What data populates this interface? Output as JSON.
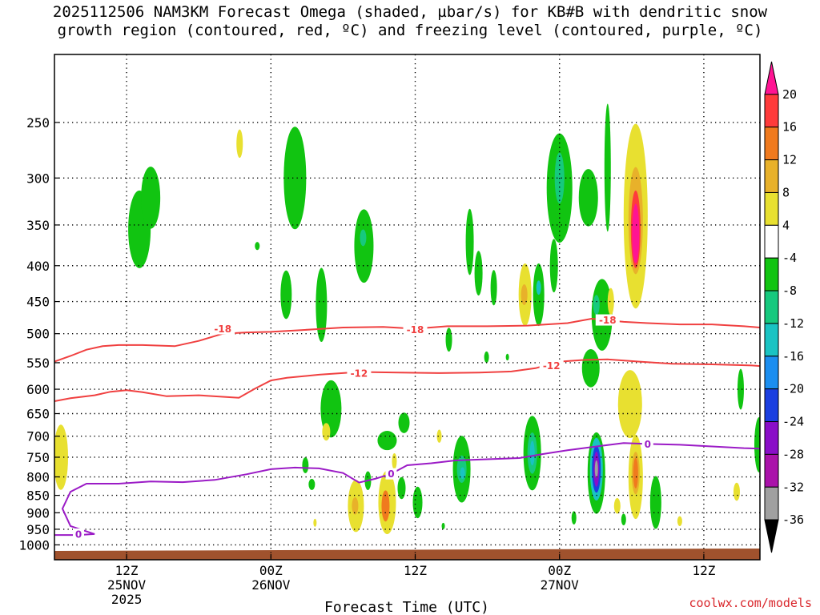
{
  "title": {
    "line1": "2025112506 NAM3KM Forecast Omega (shaded, µbar/s) for KB#B with dendritic snow",
    "line2": "growth region (contoured, red, ºC) and freezing level (contoured, purple, ºC)"
  },
  "credit": "coolwx.com/models",
  "chart_data": {
    "type": "heatmap",
    "xlabel": "Forecast Time (UTC)",
    "ylabel": "",
    "y_scale": "log-pressure (inverted)",
    "ylim": [
      200,
      1050
    ],
    "xlim": [
      6,
      94
    ],
    "x_ticks": [
      {
        "x": 15,
        "labels": [
          "12Z",
          "25NOV",
          "2025"
        ]
      },
      {
        "x": 33,
        "labels": [
          "00Z",
          "26NOV"
        ]
      },
      {
        "x": 51,
        "labels": [
          "12Z"
        ]
      },
      {
        "x": 69,
        "labels": [
          "00Z",
          "27NOV"
        ]
      },
      {
        "x": 87,
        "labels": [
          "12Z"
        ]
      }
    ],
    "y_ticks": [
      250,
      300,
      350,
      400,
      450,
      500,
      550,
      600,
      650,
      700,
      750,
      800,
      850,
      900,
      950,
      1000
    ],
    "grid": true,
    "colorbar": {
      "label_unit": "µbar/s",
      "levels": [
        20,
        16,
        12,
        8,
        4,
        -4,
        -8,
        -12,
        -16,
        -20,
        -24,
        -28,
        -32,
        -36
      ],
      "colors": [
        "#ff1493",
        "#ff3b3b",
        "#f07a1e",
        "#e8b12a",
        "#e8e030",
        "#ffffff",
        "#11c411",
        "#16c97e",
        "#19c3c3",
        "#1b8ef0",
        "#1a3ee0",
        "#8a0ec8",
        "#aa12aa",
        "#a0a0a0",
        "#000000"
      ]
    },
    "contours": [
      {
        "name": "-18",
        "color": "#f04040",
        "label_positions": [
          [
            27,
            492
          ],
          [
            51,
            493
          ],
          [
            75,
            478
          ]
        ],
        "points": [
          [
            6,
            548
          ],
          [
            8,
            538
          ],
          [
            10,
            527
          ],
          [
            12,
            521
          ],
          [
            14,
            519
          ],
          [
            17,
            519
          ],
          [
            21,
            521
          ],
          [
            24,
            512
          ],
          [
            27,
            500
          ],
          [
            30,
            498
          ],
          [
            33,
            497
          ],
          [
            37,
            494
          ],
          [
            42,
            490
          ],
          [
            47,
            489
          ],
          [
            51,
            492
          ],
          [
            55,
            488
          ],
          [
            60,
            488
          ],
          [
            65,
            487
          ],
          [
            70,
            483
          ],
          [
            73,
            476
          ],
          [
            77,
            481
          ],
          [
            80,
            483
          ],
          [
            84,
            485
          ],
          [
            88,
            485
          ],
          [
            92,
            488
          ],
          [
            94,
            490
          ]
        ]
      },
      {
        "name": "-12",
        "color": "#f04040",
        "label_positions": [
          [
            44,
            569
          ],
          [
            68,
            555
          ]
        ],
        "points": [
          [
            6,
            624
          ],
          [
            8,
            618
          ],
          [
            11,
            612
          ],
          [
            13,
            605
          ],
          [
            15,
            602
          ],
          [
            17,
            606
          ],
          [
            20,
            614
          ],
          [
            24,
            612
          ],
          [
            29,
            617
          ],
          [
            31,
            599
          ],
          [
            33,
            583
          ],
          [
            35,
            578
          ],
          [
            39,
            572
          ],
          [
            44,
            567
          ],
          [
            49,
            568
          ],
          [
            54,
            569
          ],
          [
            59,
            568
          ],
          [
            63,
            566
          ],
          [
            66,
            560
          ],
          [
            69,
            548
          ],
          [
            72,
            545
          ],
          [
            75,
            544
          ],
          [
            79,
            548
          ],
          [
            83,
            552
          ],
          [
            88,
            553
          ],
          [
            93,
            555
          ],
          [
            94,
            556
          ]
        ]
      },
      {
        "name": "0",
        "color": "#9b1bc6",
        "label_positions": [
          [
            9,
            965
          ],
          [
            48,
            792
          ],
          [
            80,
            718
          ]
        ],
        "points": [
          [
            6,
            968
          ],
          [
            9,
            968
          ],
          [
            11,
            965
          ],
          [
            8,
            940
          ],
          [
            7,
            888
          ],
          [
            8,
            840
          ],
          [
            10,
            818
          ],
          [
            14,
            818
          ],
          [
            18,
            812
          ],
          [
            22,
            814
          ],
          [
            26,
            808
          ],
          [
            30,
            793
          ],
          [
            33,
            780
          ],
          [
            36,
            776
          ],
          [
            39,
            778
          ],
          [
            42,
            790
          ],
          [
            44,
            815
          ],
          [
            46,
            805
          ],
          [
            48,
            792
          ],
          [
            50,
            770
          ],
          [
            53,
            765
          ],
          [
            56,
            758
          ],
          [
            60,
            755
          ],
          [
            64,
            752
          ],
          [
            67,
            742
          ],
          [
            70,
            733
          ],
          [
            74,
            723
          ],
          [
            77,
            716
          ],
          [
            80,
            718
          ],
          [
            84,
            720
          ],
          [
            88,
            724
          ],
          [
            92,
            728
          ],
          [
            94,
            729
          ]
        ]
      }
    ],
    "omega_features": [
      {
        "x": 16.6,
        "p": 355,
        "w": 1.4,
        "h": 90,
        "v": -8
      },
      {
        "x": 18,
        "p": 320,
        "w": 1.2,
        "h": 65,
        "v": -8
      },
      {
        "x": 29.1,
        "p": 268,
        "w": 0.4,
        "h": 25,
        "v": 4
      },
      {
        "x": 31.3,
        "p": 375,
        "w": 0.3,
        "h": 10,
        "v": -8
      },
      {
        "x": 36,
        "p": 300,
        "w": 1.4,
        "h": 100,
        "v": -8
      },
      {
        "x": 34.9,
        "p": 440,
        "w": 0.7,
        "h": 70,
        "v": -8
      },
      {
        "x": 39.3,
        "p": 455,
        "w": 0.7,
        "h": 110,
        "v": -8
      },
      {
        "x": 44.6,
        "p": 375,
        "w": 1.2,
        "h": 90,
        "v": -8
      },
      {
        "x": 44.5,
        "p": 365,
        "w": 0.4,
        "h": 20,
        "v": -12
      },
      {
        "x": 40.5,
        "p": 640,
        "w": 1.3,
        "h": 120,
        "v": -8
      },
      {
        "x": 39.9,
        "p": 690,
        "w": 0.5,
        "h": 40,
        "v": 4
      },
      {
        "x": 37.3,
        "p": 770,
        "w": 0.4,
        "h": 40,
        "v": -8
      },
      {
        "x": 38.1,
        "p": 820,
        "w": 0.4,
        "h": 30,
        "v": -8
      },
      {
        "x": 45.1,
        "p": 810,
        "w": 0.4,
        "h": 50,
        "v": -8
      },
      {
        "x": 43.6,
        "p": 880,
        "w": 1.0,
        "h": 150,
        "v": 4
      },
      {
        "x": 43.5,
        "p": 880,
        "w": 0.4,
        "h": 50,
        "v": 8
      },
      {
        "x": 47.5,
        "p": 870,
        "w": 1.1,
        "h": 180,
        "v": 4
      },
      {
        "x": 47.3,
        "p": 880,
        "w": 0.5,
        "h": 90,
        "v": 12
      },
      {
        "x": 47.5,
        "p": 710,
        "w": 1.2,
        "h": 45,
        "v": -8
      },
      {
        "x": 49.3,
        "p": 830,
        "w": 0.5,
        "h": 60,
        "v": -8
      },
      {
        "x": 49.6,
        "p": 670,
        "w": 0.7,
        "h": 45,
        "v": -8
      },
      {
        "x": 51.3,
        "p": 870,
        "w": 0.6,
        "h": 90,
        "v": -8
      },
      {
        "x": 56.8,
        "p": 780,
        "w": 1.1,
        "h": 170,
        "v": -8
      },
      {
        "x": 56.8,
        "p": 780,
        "w": 0.6,
        "h": 70,
        "v": -12
      },
      {
        "x": 56.9,
        "p": 790,
        "w": 0.3,
        "h": 30,
        "v": -16
      },
      {
        "x": 55.2,
        "p": 510,
        "w": 0.4,
        "h": 40,
        "v": -8
      },
      {
        "x": 57.8,
        "p": 370,
        "w": 0.5,
        "h": 80,
        "v": -8
      },
      {
        "x": 58.9,
        "p": 410,
        "w": 0.5,
        "h": 60,
        "v": -8
      },
      {
        "x": 60.8,
        "p": 430,
        "w": 0.4,
        "h": 50,
        "v": -8
      },
      {
        "x": 64.7,
        "p": 440,
        "w": 0.8,
        "h": 90,
        "v": 4
      },
      {
        "x": 64.6,
        "p": 440,
        "w": 0.4,
        "h": 30,
        "v": 8
      },
      {
        "x": 66.4,
        "p": 440,
        "w": 0.7,
        "h": 90,
        "v": -8
      },
      {
        "x": 66.4,
        "p": 430,
        "w": 0.3,
        "h": 20,
        "v": -16
      },
      {
        "x": 68.3,
        "p": 400,
        "w": 0.5,
        "h": 70,
        "v": -8
      },
      {
        "x": 65.6,
        "p": 740,
        "w": 1.1,
        "h": 180,
        "v": -8
      },
      {
        "x": 65.6,
        "p": 740,
        "w": 0.6,
        "h": 100,
        "v": -12
      },
      {
        "x": 65.6,
        "p": 740,
        "w": 0.3,
        "h": 60,
        "v": -16
      },
      {
        "x": 59.9,
        "p": 540,
        "w": 0.3,
        "h": 20,
        "v": -8
      },
      {
        "x": 62.5,
        "p": 540,
        "w": 0.2,
        "h": 12,
        "v": -8
      },
      {
        "x": 69,
        "p": 310,
        "w": 1.6,
        "h": 110,
        "v": -8
      },
      {
        "x": 69,
        "p": 300,
        "w": 0.6,
        "h": 50,
        "v": -12
      },
      {
        "x": 72.6,
        "p": 320,
        "w": 1.2,
        "h": 60,
        "v": -8
      },
      {
        "x": 74.3,
        "p": 470,
        "w": 1.3,
        "h": 110,
        "v": -8
      },
      {
        "x": 73.6,
        "p": 455,
        "w": 0.4,
        "h": 30,
        "v": -12
      },
      {
        "x": 75.4,
        "p": 450,
        "w": 0.4,
        "h": 40,
        "v": 4
      },
      {
        "x": 75,
        "p": 290,
        "w": 0.4,
        "h": 120,
        "v": -8
      },
      {
        "x": 72.9,
        "p": 560,
        "w": 1.1,
        "h": 70,
        "v": -8
      },
      {
        "x": 78.5,
        "p": 340,
        "w": 1.5,
        "h": 200,
        "v": 4
      },
      {
        "x": 78.5,
        "p": 345,
        "w": 0.9,
        "h": 120,
        "v": 8
      },
      {
        "x": 78.5,
        "p": 355,
        "w": 0.6,
        "h": 90,
        "v": 16
      },
      {
        "x": 78.5,
        "p": 360,
        "w": 0.45,
        "h": 70,
        "v": 20
      },
      {
        "x": 77.8,
        "p": 630,
        "w": 1.5,
        "h": 140,
        "v": 4
      },
      {
        "x": 78.5,
        "p": 800,
        "w": 0.9,
        "h": 220,
        "v": 4
      },
      {
        "x": 78.5,
        "p": 790,
        "w": 0.5,
        "h": 110,
        "v": 8
      },
      {
        "x": 78.5,
        "p": 790,
        "w": 0.3,
        "h": 80,
        "v": 12
      },
      {
        "x": 73.6,
        "p": 790,
        "w": 1.1,
        "h": 210,
        "v": -8
      },
      {
        "x": 73.6,
        "p": 780,
        "w": 0.8,
        "h": 160,
        "v": -16
      },
      {
        "x": 73.6,
        "p": 780,
        "w": 0.55,
        "h": 120,
        "v": -24
      },
      {
        "x": 73.6,
        "p": 780,
        "w": 0.35,
        "h": 90,
        "v": -28
      },
      {
        "x": 73.6,
        "p": 780,
        "w": 0.2,
        "h": 45,
        "v": -36
      },
      {
        "x": 81,
        "p": 870,
        "w": 0.7,
        "h": 150,
        "v": -8
      },
      {
        "x": 76.2,
        "p": 880,
        "w": 0.4,
        "h": 45,
        "v": 4
      },
      {
        "x": 77,
        "p": 920,
        "w": 0.3,
        "h": 35,
        "v": -8
      },
      {
        "x": 70.8,
        "p": 915,
        "w": 0.3,
        "h": 40,
        "v": -8
      },
      {
        "x": 84,
        "p": 925,
        "w": 0.3,
        "h": 30,
        "v": 4
      },
      {
        "x": 91.6,
        "p": 600,
        "w": 0.4,
        "h": 80,
        "v": -8
      },
      {
        "x": 93.9,
        "p": 720,
        "w": 0.6,
        "h": 130,
        "v": -8
      },
      {
        "x": 91.1,
        "p": 840,
        "w": 0.4,
        "h": 50,
        "v": 4
      },
      {
        "x": 6.8,
        "p": 750,
        "w": 0.9,
        "h": 160,
        "v": 4
      },
      {
        "x": 38.5,
        "p": 930,
        "w": 0.2,
        "h": 25,
        "v": 4
      },
      {
        "x": 54,
        "p": 700,
        "w": 0.3,
        "h": 30,
        "v": 4
      },
      {
        "x": 54.5,
        "p": 940,
        "w": 0.2,
        "h": 20,
        "v": -8
      },
      {
        "x": 48.4,
        "p": 760,
        "w": 0.3,
        "h": 40,
        "v": 4
      }
    ],
    "terrain": {
      "color": "#a0522d",
      "top_pressure_start": 1020,
      "top_pressure_end": 1012
    }
  }
}
